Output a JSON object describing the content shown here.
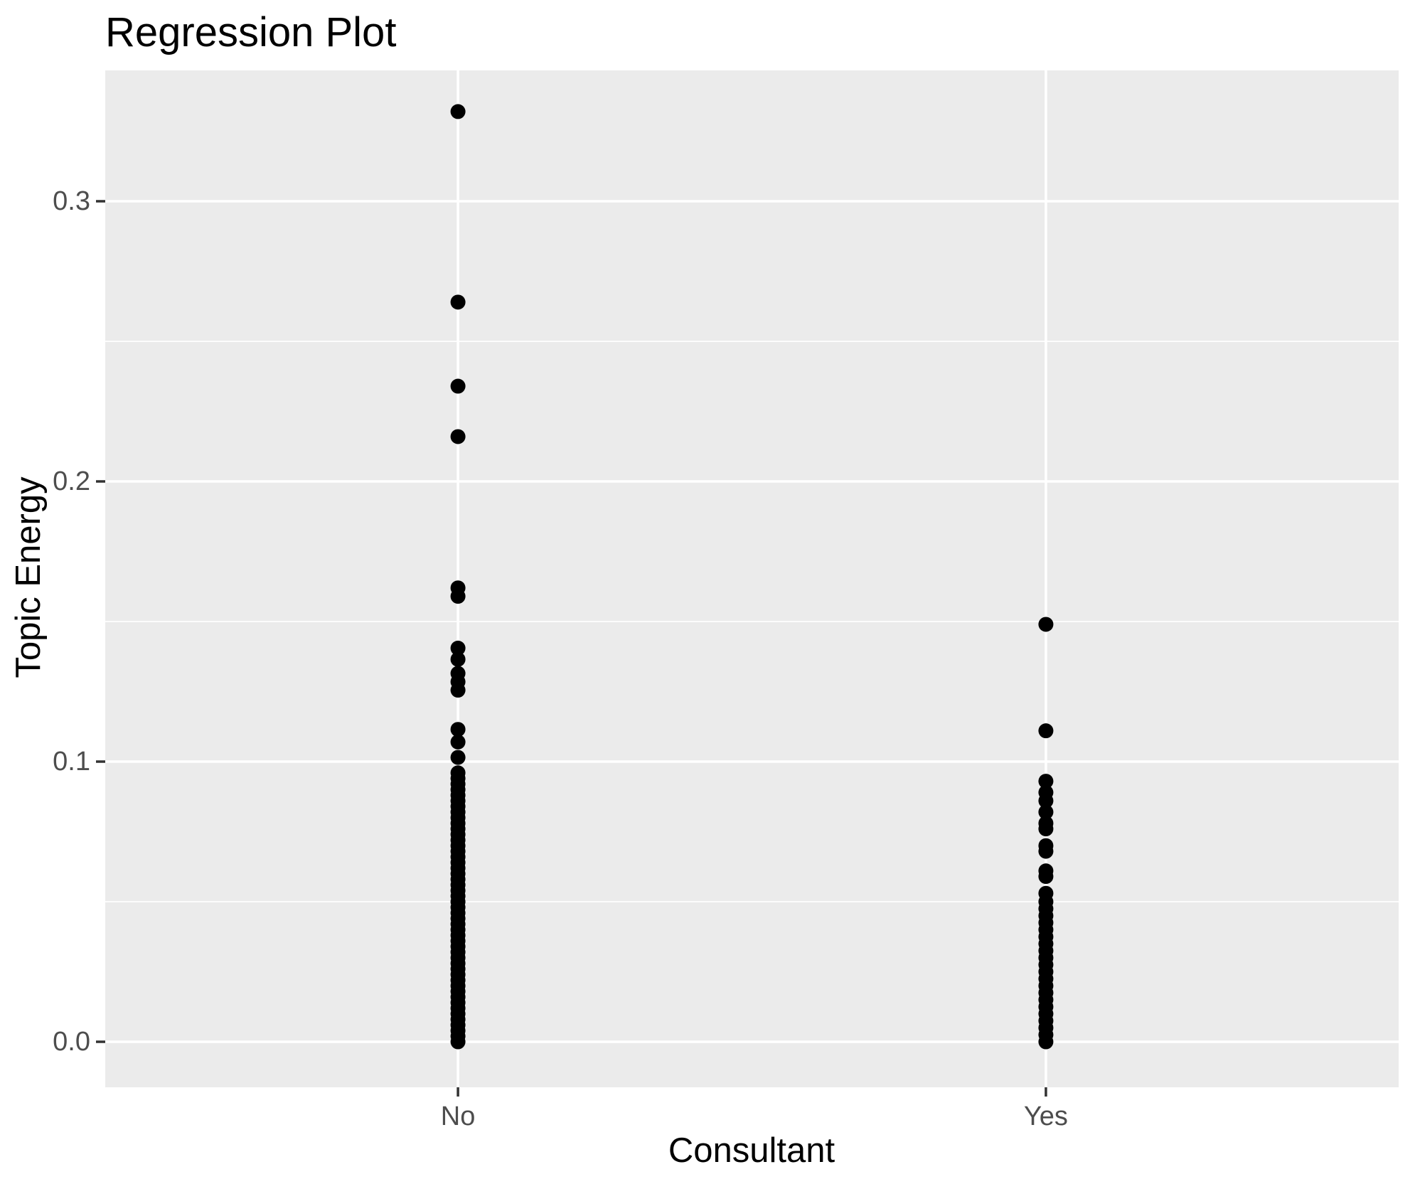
{
  "chart_data": {
    "type": "scatter",
    "title": "Regression Plot",
    "xlabel": "Consultant",
    "ylabel": "Topic Energy",
    "categories": [
      "No",
      "Yes"
    ],
    "y_ticks": {
      "values": [
        0.0,
        0.1,
        0.2,
        0.3
      ],
      "labels": [
        "0.0",
        "0.1",
        "0.2",
        "0.3"
      ]
    },
    "y_minor_ticks": [
      0.05,
      0.15,
      0.25
    ],
    "ylim": [
      -0.01624,
      0.3467
    ],
    "grid": true,
    "legend": "none",
    "series": [
      {
        "name": "No",
        "values": [
          0.0,
          0.002,
          0.004,
          0.006,
          0.008,
          0.01,
          0.012,
          0.014,
          0.016,
          0.018,
          0.02,
          0.022,
          0.024,
          0.026,
          0.028,
          0.03,
          0.032,
          0.034,
          0.036,
          0.038,
          0.04,
          0.042,
          0.044,
          0.046,
          0.048,
          0.05,
          0.052,
          0.054,
          0.056,
          0.058,
          0.06,
          0.062,
          0.064,
          0.066,
          0.068,
          0.07,
          0.072,
          0.074,
          0.076,
          0.078,
          0.08,
          0.082,
          0.084,
          0.086,
          0.088,
          0.09,
          0.092,
          0.094,
          0.096,
          0.1015,
          0.107,
          0.1115,
          0.1255,
          0.1285,
          0.1315,
          0.1365,
          0.1405,
          0.159,
          0.162,
          0.216,
          0.234,
          0.264,
          0.332
        ]
      },
      {
        "name": "Yes",
        "values": [
          0.0,
          0.0025,
          0.005,
          0.0075,
          0.01,
          0.0125,
          0.015,
          0.0175,
          0.02,
          0.0225,
          0.025,
          0.0275,
          0.03,
          0.0325,
          0.035,
          0.0375,
          0.04,
          0.0425,
          0.045,
          0.0475,
          0.05,
          0.053,
          0.059,
          0.061,
          0.068,
          0.07,
          0.076,
          0.078,
          0.082,
          0.086,
          0.089,
          0.093,
          0.111,
          0.149
        ]
      }
    ],
    "style": {
      "panel_bg": "#EBEBEB",
      "grid_color": "#FFFFFF",
      "tick_label_color": "#4D4D4D",
      "tick_mark_color": "#333333",
      "point_color": "#000000",
      "title_color": "#000000",
      "axis_title_color": "#000000"
    }
  }
}
